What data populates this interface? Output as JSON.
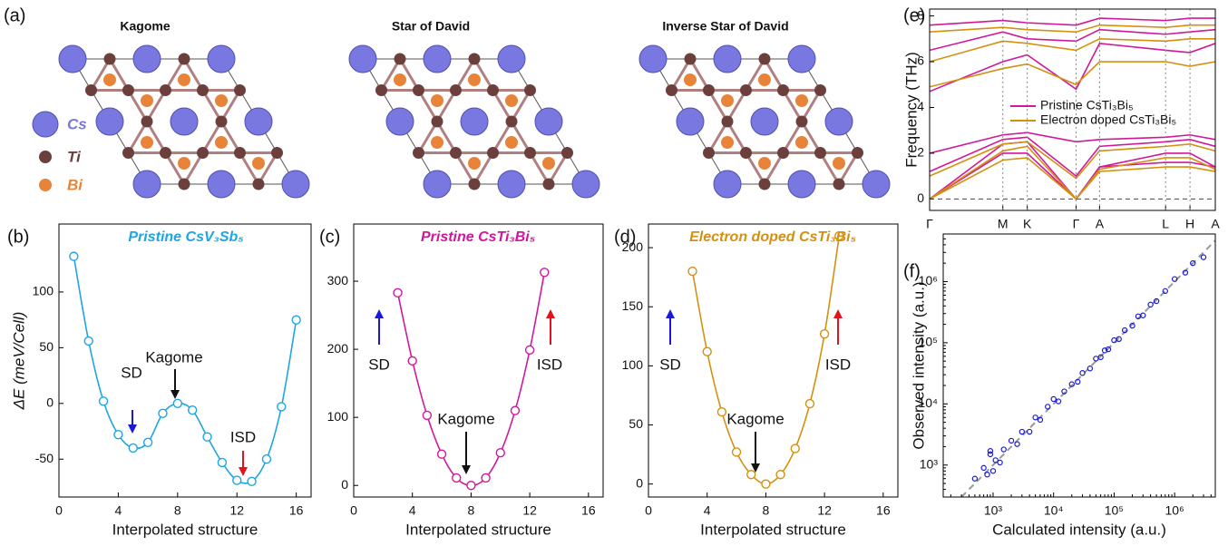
{
  "structures": {
    "label": "(a)",
    "titles": [
      "Kagome",
      "Star of David",
      "Inverse Star of David"
    ],
    "legend": [
      "Cs",
      "Ti",
      "Bi"
    ]
  },
  "chart_data": [
    {
      "type": "line",
      "label": "(b)",
      "title": "Pristine CsV₃Sb₅",
      "color": "#1ea5e3",
      "x_label": "Interpolated structure",
      "y_label": "ΔE (meV/Cell)",
      "x": [
        1,
        2,
        3,
        4,
        5,
        6,
        7,
        8,
        9,
        10,
        11,
        12,
        13,
        14,
        15,
        16
      ],
      "values": [
        132,
        56,
        2,
        -28,
        -40,
        -35,
        -9,
        0,
        -6,
        -30,
        -53,
        -69,
        -70,
        -50,
        -3,
        75
      ],
      "xlim": [
        0,
        17
      ],
      "xticks": [
        0,
        4,
        8,
        12,
        16
      ],
      "ylim": [
        -84,
        161
      ],
      "yticks": [
        -50,
        0,
        50,
        100
      ],
      "annotations": [
        {
          "text": "SD",
          "color": "#1a1ad6"
        },
        {
          "text": "Kagome",
          "color": "#111111"
        },
        {
          "text": "ISD",
          "color": "#e0141e"
        }
      ]
    },
    {
      "type": "line",
      "label": "(c)",
      "title": "Pristine CsTi₃Bi₅",
      "color": "#d0189c",
      "x_label": "Interpolated structure",
      "x": [
        3,
        4,
        5,
        6,
        7,
        8,
        9,
        10,
        11,
        12,
        13
      ],
      "values": [
        283,
        183,
        103,
        46,
        11,
        0,
        11,
        48,
        110,
        199,
        313
      ],
      "xlim": [
        0,
        17
      ],
      "xticks": [
        0,
        4,
        8,
        12,
        16
      ],
      "ylim": [
        -17,
        384
      ],
      "yticks": [
        0,
        100,
        200,
        300
      ],
      "annotations": [
        {
          "text": "SD",
          "color": "#1a1ad6"
        },
        {
          "text": "Kagome",
          "color": "#111111"
        },
        {
          "text": "ISD",
          "color": "#e0141e"
        }
      ]
    },
    {
      "type": "line",
      "label": "(d)",
      "title": "Electron doped CsTi₃Bi₅",
      "color": "#d4900f",
      "x_label": "Interpolated structure",
      "x": [
        3,
        4,
        5,
        6,
        7,
        8,
        9,
        10,
        11,
        12,
        13
      ],
      "values": [
        180,
        112,
        61,
        27,
        8,
        0,
        8,
        30,
        68,
        127,
        210
      ],
      "xlim": [
        0,
        17
      ],
      "xticks": [
        0,
        4,
        8,
        12,
        16
      ],
      "ylim": [
        -11,
        220
      ],
      "yticks": [
        0,
        50,
        100,
        150,
        200
      ],
      "annotations": [
        {
          "text": "SD",
          "color": "#1a1ad6"
        },
        {
          "text": "Kagome",
          "color": "#111111"
        },
        {
          "text": "ISD",
          "color": "#e0141e"
        }
      ]
    },
    {
      "type": "bands",
      "label": "(e)",
      "y_label": "Frequency (THz)",
      "x": [
        0,
        0.81,
        1.08,
        1.62,
        1.88,
        2.61,
        2.88,
        3.16
      ],
      "xlim": [
        0,
        3.16
      ],
      "xticks": [
        {
          "value": 0,
          "label": "Γ"
        },
        {
          "value": 0.81,
          "label": "M"
        },
        {
          "value": 1.08,
          "label": "K"
        },
        {
          "value": 1.62,
          "label": "Γ"
        },
        {
          "value": 1.88,
          "label": "A"
        },
        {
          "value": 2.61,
          "label": "L"
        },
        {
          "value": 2.88,
          "label": "H"
        },
        {
          "value": 3.16,
          "label": "A"
        }
      ],
      "ylim": [
        -0.5,
        8.3
      ],
      "yticks": [
        0,
        2,
        4,
        6,
        8
      ],
      "series": [
        {
          "name": "Pristine CsTi₃Bi₅",
          "color": "#d0189c",
          "bands": [
            [
              0,
              2.0,
              2.0,
              0,
              1.4,
              1.6,
              1.6,
              1.4
            ],
            [
              0,
              2.4,
              2.5,
              0,
              1.4,
              2.0,
              2.0,
              1.4
            ],
            [
              1.2,
              2.6,
              2.7,
              1.0,
              2.3,
              2.5,
              2.6,
              2.3
            ],
            [
              2.0,
              2.8,
              2.9,
              2.5,
              2.6,
              2.7,
              2.8,
              2.6
            ],
            [
              4.7,
              6.0,
              6.3,
              4.8,
              6.8,
              6.5,
              6.4,
              6.8
            ],
            [
              6.5,
              7.3,
              7.0,
              6.9,
              7.4,
              7.2,
              7.3,
              7.4
            ],
            [
              7.6,
              7.8,
              7.7,
              7.6,
              7.9,
              7.8,
              7.9,
              7.9
            ]
          ]
        },
        {
          "name": "Electron doped CsTi₃Bi₅",
          "color": "#d4900f",
          "bands": [
            [
              0,
              1.7,
              1.8,
              0,
              1.2,
              1.4,
              1.4,
              1.2
            ],
            [
              0,
              2.1,
              2.3,
              0,
              1.3,
              1.8,
              1.8,
              1.3
            ],
            [
              1.0,
              2.4,
              2.5,
              0.9,
              2.1,
              2.3,
              2.4,
              2.1
            ],
            [
              4.9,
              5.7,
              5.9,
              5.0,
              6.0,
              6.0,
              5.8,
              6.0
            ],
            [
              6.0,
              6.9,
              6.8,
              6.5,
              7.0,
              6.9,
              7.0,
              7.0
            ],
            [
              7.3,
              7.5,
              7.4,
              7.3,
              7.6,
              7.5,
              7.6,
              7.6
            ]
          ]
        }
      ]
    },
    {
      "type": "scatter",
      "label": "(f)",
      "color": "#1a1ad6",
      "log": true,
      "x_label": "Calculated intensity (a.u.)",
      "y_label": "Observed intensity (a.u.)",
      "x": [
        500,
        700,
        800,
        900,
        1000,
        1100,
        1300,
        1500,
        2000,
        2500,
        3000,
        4000,
        5000,
        6000,
        8000,
        10000,
        12000,
        15000,
        20000,
        25000,
        30000,
        40000,
        50000,
        60000,
        70000,
        80000,
        100000,
        120000,
        150000,
        200000,
        250000,
        300000,
        400000,
        500000,
        700000,
        1000000,
        1500000,
        2000000,
        3000000,
        900
      ],
      "values": [
        600,
        900,
        700,
        1500,
        800,
        1200,
        1100,
        1800,
        2500,
        2200,
        3500,
        3500,
        6000,
        5500,
        9000,
        12000,
        11000,
        16000,
        21000,
        23000,
        32000,
        38000,
        55000,
        58000,
        75000,
        78000,
        110000,
        115000,
        160000,
        190000,
        270000,
        280000,
        420000,
        480000,
        700000,
        1100000,
        1400000,
        2000000,
        2500000,
        1700
      ],
      "xlim": [
        150,
        4700000
      ],
      "xticks": [
        {
          "value": 1000,
          "label": "10³"
        },
        {
          "value": 10000,
          "label": "10⁴"
        },
        {
          "value": 100000,
          "label": "10⁵"
        },
        {
          "value": 1000000,
          "label": "10⁶"
        }
      ],
      "ylim": [
        300,
        6000000
      ],
      "yticks": [
        {
          "value": 1000,
          "label": "10³"
        },
        {
          "value": 10000,
          "label": "10⁴"
        },
        {
          "value": 100000,
          "label": "10⁵"
        },
        {
          "value": 1000000,
          "label": "10⁶"
        }
      ]
    }
  ]
}
